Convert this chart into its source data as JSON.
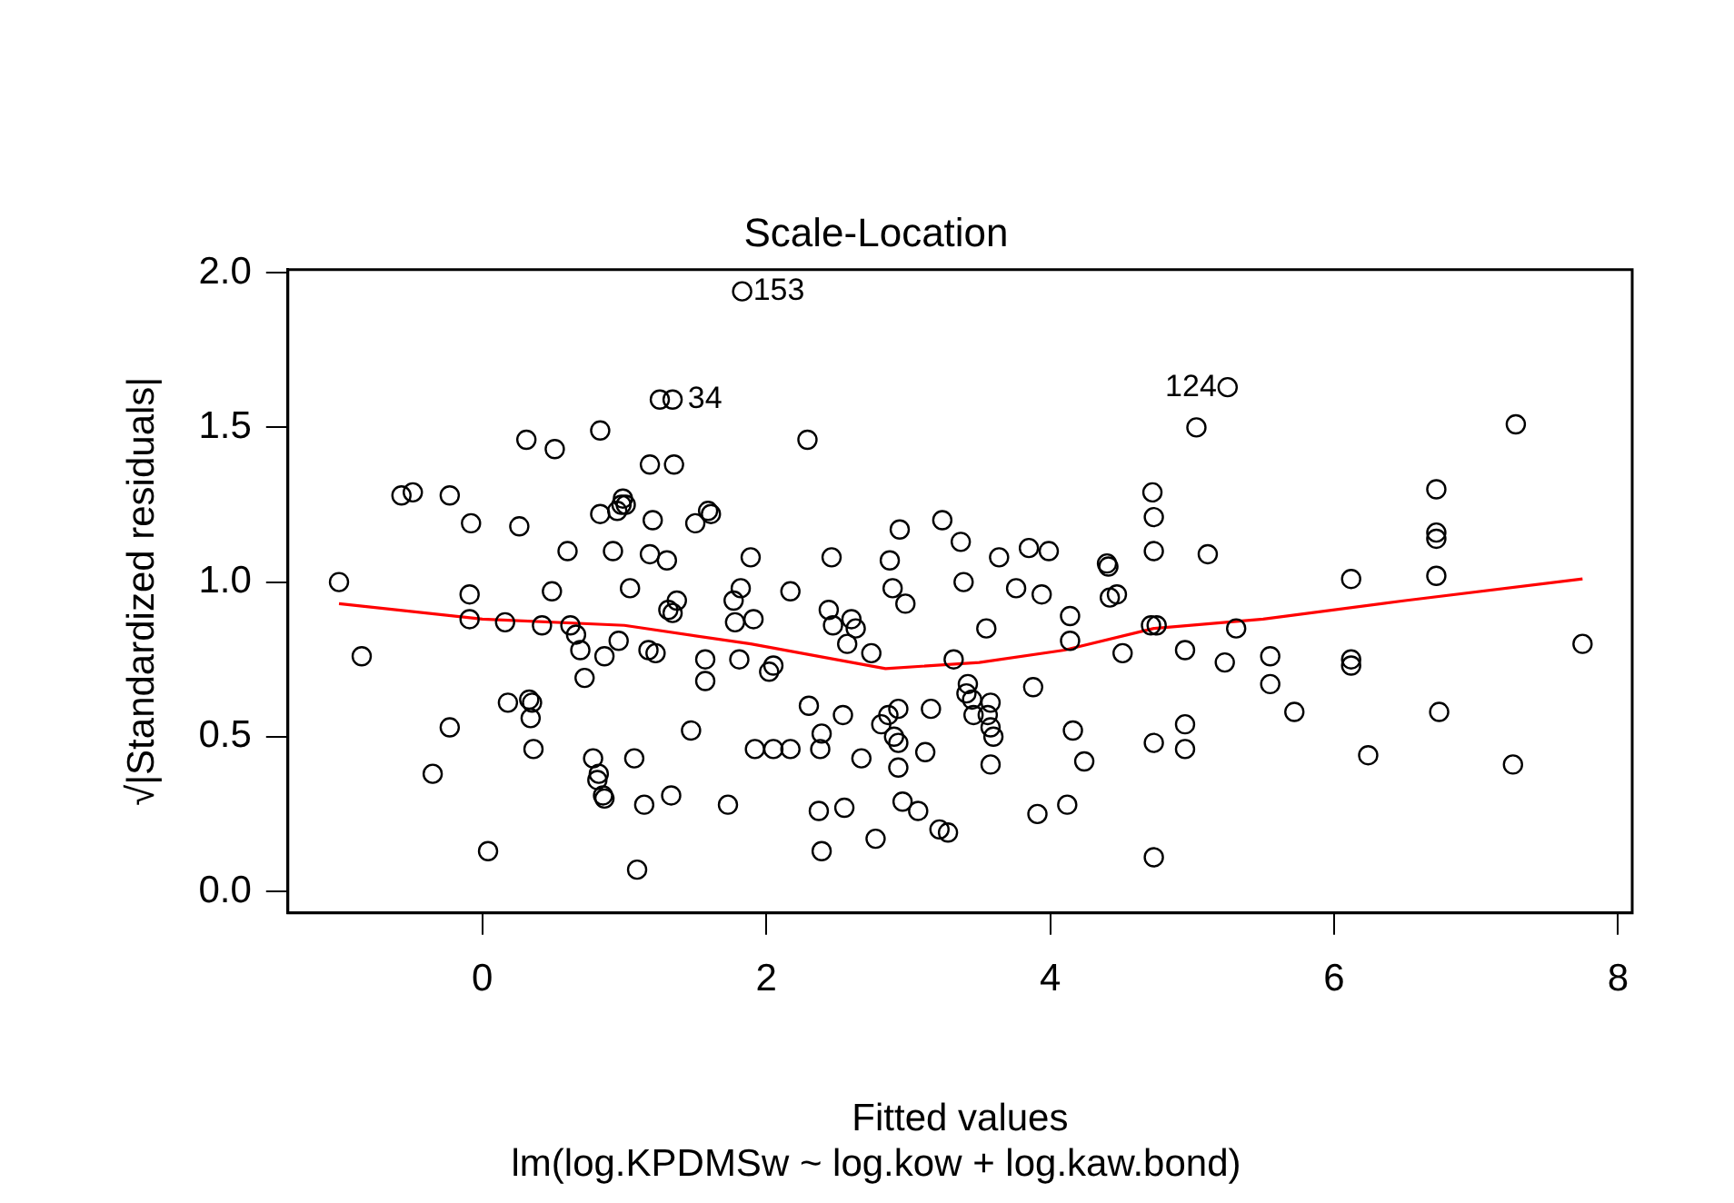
{
  "chart_data": {
    "type": "scatter",
    "title": "Scale-Location",
    "subtitle": "lm(log.KPDMSw ~ log.kow + log.kaw.bond)",
    "xlabel": "Fitted values",
    "ylabel": "√|Standardized residuals|",
    "xlim": [
      -1.37,
      8.1
    ],
    "ylim": [
      -0.07,
      2.01
    ],
    "xticks": [
      0,
      2,
      4,
      6,
      8
    ],
    "yticks": [
      {
        "value": 0,
        "label": "0.0"
      },
      0.5,
      {
        "value": 1,
        "label": "1.0"
      },
      1.5,
      {
        "value": 2,
        "label": "2.0"
      }
    ],
    "grid": false,
    "legend": false,
    "series": [
      {
        "type": "scatter",
        "marker": "circle",
        "color": "#000000",
        "x": [
          -1.01,
          -0.85,
          -0.57,
          -0.49,
          -0.35,
          -0.23,
          -0.23,
          -0.08,
          -0.09,
          -0.09,
          0.04,
          0.16,
          0.18,
          0.26,
          0.31,
          0.33,
          0.35,
          0.34,
          0.36,
          0.42,
          0.49,
          0.51,
          0.6,
          0.62,
          0.66,
          0.69,
          0.72,
          0.78,
          0.81,
          0.83,
          0.83,
          0.82,
          0.85,
          0.86,
          0.86,
          0.92,
          0.95,
          0.96,
          0.98,
          0.99,
          1.01,
          1.04,
          1.07,
          1.09,
          1.14,
          1.17,
          1.18,
          1.18,
          1.2,
          1.22,
          1.25,
          1.3,
          1.31,
          1.34,
          1.35,
          1.37,
          1.33,
          1.34,
          1.47,
          1.5,
          1.57,
          1.57,
          1.59,
          1.61,
          1.73,
          1.77,
          1.78,
          1.81,
          1.82,
          1.89,
          1.91,
          1.83,
          1.92,
          2.02,
          2.05,
          2.05,
          2.17,
          2.17,
          2.29,
          2.3,
          2.38,
          2.39,
          2.39,
          2.37,
          2.44,
          2.46,
          2.47,
          2.54,
          2.55,
          2.57,
          2.6,
          2.63,
          2.67,
          2.74,
          2.77,
          2.81,
          2.86,
          2.87,
          2.9,
          2.93,
          2.93,
          2.89,
          2.93,
          2.94,
          2.96,
          2.98,
          3.07,
          3.12,
          3.16,
          3.24,
          3.22,
          3.28,
          3.32,
          3.37,
          3.41,
          3.39,
          3.42,
          3.45,
          3.46,
          3.55,
          3.58,
          3.56,
          3.58,
          3.6,
          3.58,
          3.64,
          3.76,
          3.85,
          3.88,
          3.91,
          3.94,
          3.99,
          4.14,
          4.14,
          4.16,
          4.24,
          4.12,
          4.4,
          4.41,
          4.42,
          4.47,
          4.51,
          4.72,
          4.73,
          4.73,
          4.75,
          4.71,
          4.73,
          4.73,
          4.95,
          4.95,
          4.95,
          5.25,
          5.03,
          5.11,
          5.31,
          5.23,
          5.55,
          5.55,
          5.72,
          6.12,
          6.12,
          6.12,
          6.24,
          6.72,
          6.72,
          6.72,
          6.72,
          6.74,
          7.26,
          7.28,
          7.75
        ],
        "values": [
          1.0,
          0.76,
          1.28,
          1.29,
          0.38,
          0.53,
          1.28,
          1.19,
          0.96,
          0.88,
          0.13,
          0.87,
          0.61,
          1.18,
          1.46,
          0.62,
          0.61,
          0.56,
          0.46,
          0.86,
          0.97,
          1.43,
          1.1,
          0.86,
          0.83,
          0.78,
          0.69,
          0.43,
          0.36,
          1.49,
          1.22,
          0.38,
          0.31,
          0.3,
          0.76,
          1.1,
          1.23,
          0.81,
          1.25,
          1.27,
          1.25,
          0.98,
          0.43,
          0.07,
          0.28,
          0.78,
          1.09,
          1.38,
          1.2,
          0.77,
          1.59,
          1.07,
          0.91,
          1.59,
          1.38,
          0.94,
          0.31,
          0.9,
          0.52,
          1.19,
          0.68,
          0.75,
          1.23,
          1.22,
          0.28,
          0.94,
          0.87,
          0.75,
          0.98,
          1.08,
          0.88,
          1.94,
          0.46,
          0.71,
          0.73,
          0.46,
          0.46,
          0.97,
          1.46,
          0.6,
          0.46,
          0.51,
          0.13,
          0.26,
          0.91,
          1.08,
          0.86,
          0.57,
          0.27,
          0.8,
          0.88,
          0.85,
          0.43,
          0.77,
          0.17,
          0.54,
          0.57,
          1.07,
          0.5,
          0.48,
          0.4,
          0.98,
          0.59,
          1.17,
          0.29,
          0.93,
          0.26,
          0.45,
          0.59,
          1.2,
          0.2,
          0.19,
          0.75,
          1.13,
          0.64,
          1.0,
          0.67,
          0.62,
          0.57,
          0.85,
          0.61,
          0.57,
          0.53,
          0.5,
          0.41,
          1.08,
          0.98,
          1.11,
          0.66,
          0.25,
          0.96,
          1.1,
          0.89,
          0.81,
          0.52,
          0.42,
          0.28,
          1.06,
          1.05,
          0.95,
          0.96,
          0.77,
          1.29,
          1.21,
          1.1,
          0.86,
          0.86,
          0.11,
          0.48,
          0.78,
          0.54,
          0.46,
          1.63,
          1.5,
          1.09,
          0.85,
          0.74,
          0.76,
          0.67,
          0.58,
          1.01,
          0.75,
          0.73,
          0.44,
          1.3,
          1.16,
          1.14,
          1.02,
          0.58,
          0.41,
          1.51,
          0.8
        ]
      },
      {
        "type": "line",
        "color": "#ff0000",
        "x": [
          -1.01,
          0,
          1,
          1.89,
          2.84,
          3.5,
          4.1,
          4.73,
          5.5,
          6.5,
          7.75
        ],
        "values": [
          0.93,
          0.88,
          0.86,
          0.8,
          0.72,
          0.74,
          0.78,
          0.85,
          0.88,
          0.94,
          1.01
        ]
      }
    ],
    "annotations": [
      {
        "text": "153",
        "x": 1.83,
        "y": 1.94
      },
      {
        "text": "124",
        "x": 5.25,
        "y": 1.63
      },
      {
        "text": "34",
        "x": 1.37,
        "y": 1.59
      }
    ]
  }
}
